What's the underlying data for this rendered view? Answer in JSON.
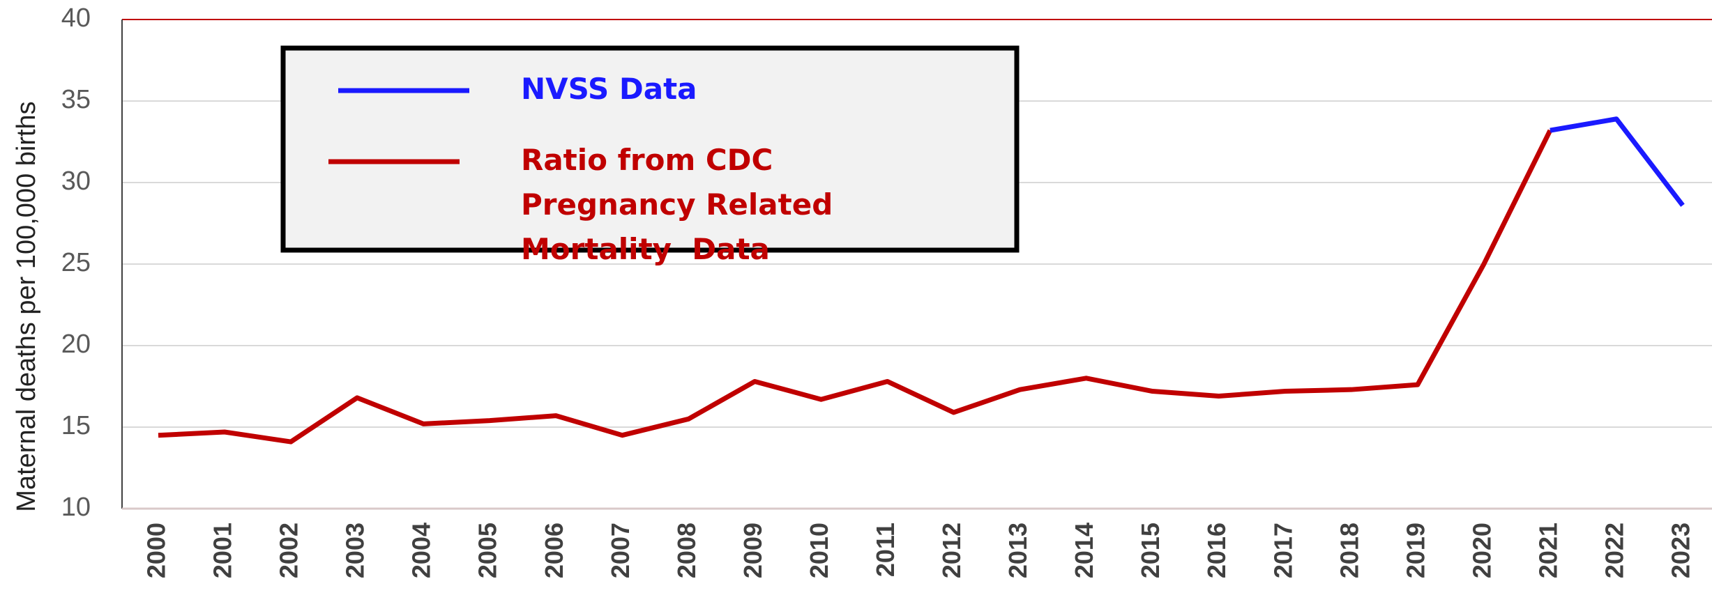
{
  "chart_data": {
    "type": "line",
    "y_label": "Maternal deaths per 100,000 births",
    "categories": [
      "2000",
      "2001",
      "2002",
      "2003",
      "2004",
      "2005",
      "2006",
      "2007",
      "2008",
      "2009",
      "2010",
      "2011",
      "2012",
      "2013",
      "2014",
      "2015",
      "2016",
      "2017",
      "2018",
      "2019",
      "2020",
      "2021",
      "2022",
      "2023"
    ],
    "series": [
      {
        "name": "NVSS Data",
        "color": "#1a1aff",
        "values": [
          null,
          null,
          null,
          null,
          null,
          null,
          null,
          null,
          null,
          null,
          null,
          null,
          null,
          null,
          null,
          null,
          null,
          null,
          null,
          null,
          null,
          33.2,
          33.9,
          28.6
        ]
      },
      {
        "name": "Ratio from CDC  Pregnancy Related Mortality  Data",
        "color": "#c00000",
        "values": [
          14.5,
          14.7,
          14.1,
          16.8,
          15.2,
          15.4,
          15.7,
          14.5,
          15.5,
          17.8,
          16.7,
          17.8,
          15.9,
          17.3,
          18.0,
          17.2,
          16.9,
          17.2,
          17.3,
          17.6,
          25.0,
          33.2,
          null,
          null
        ]
      }
    ],
    "ylim": [
      10,
      40
    ],
    "yticks": [
      10,
      15,
      20,
      25,
      30,
      35,
      40
    ],
    "grid": true
  }
}
